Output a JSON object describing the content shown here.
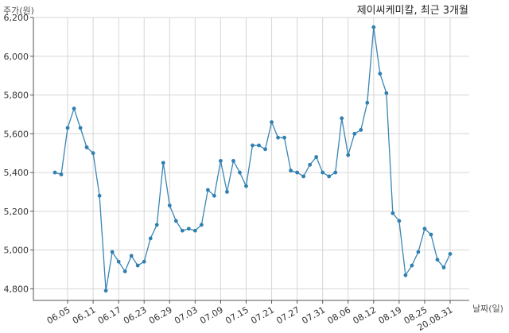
{
  "chart_data": {
    "type": "line",
    "title": "제이씨케미칼, 최근 3개월",
    "ylabel": "주가(원)",
    "xlabel": "날짜(일)",
    "ylim": [
      4740,
      6200
    ],
    "y_ticks": [
      4800,
      5000,
      5200,
      5400,
      5600,
      5800,
      6000,
      6200
    ],
    "y_tick_labels": [
      "4,800",
      "5,000",
      "5,200",
      "5,400",
      "5,600",
      "5,800",
      "6,000",
      "6,200"
    ],
    "x_tick_labels": [
      "06.05",
      "06.11",
      "06.17",
      "06.23",
      "06.29",
      "07.03",
      "07.09",
      "07.15",
      "07.21",
      "07.27",
      "07.31",
      "08.06",
      "08.12",
      "08.19",
      "08.25",
      "20.08.31"
    ],
    "x_tick_index": [
      2,
      6,
      10,
      14,
      18,
      22,
      26,
      30,
      34,
      38,
      42,
      46,
      50,
      54,
      58,
      62
    ],
    "grid": true,
    "series": [
      {
        "values": [
          5400,
          5390,
          5630,
          5730,
          5630,
          5530,
          5500,
          5280,
          4790,
          4990,
          4940,
          4890,
          4970,
          4920,
          4940,
          5060,
          5130,
          5450,
          5230,
          5150,
          5100,
          5110,
          5100,
          5130,
          5310,
          5280,
          5460,
          5300,
          5460,
          5400,
          5330,
          5540,
          5540,
          5520,
          5660,
          5580,
          5580,
          5410,
          5400,
          5380,
          5440,
          5480,
          5400,
          5380,
          5400,
          5680,
          5490,
          5600,
          5620,
          5760,
          6150,
          5910,
          5810,
          5190,
          5150,
          4870,
          4920,
          4990,
          5110,
          5080,
          4950,
          4910,
          4980
        ]
      }
    ]
  }
}
